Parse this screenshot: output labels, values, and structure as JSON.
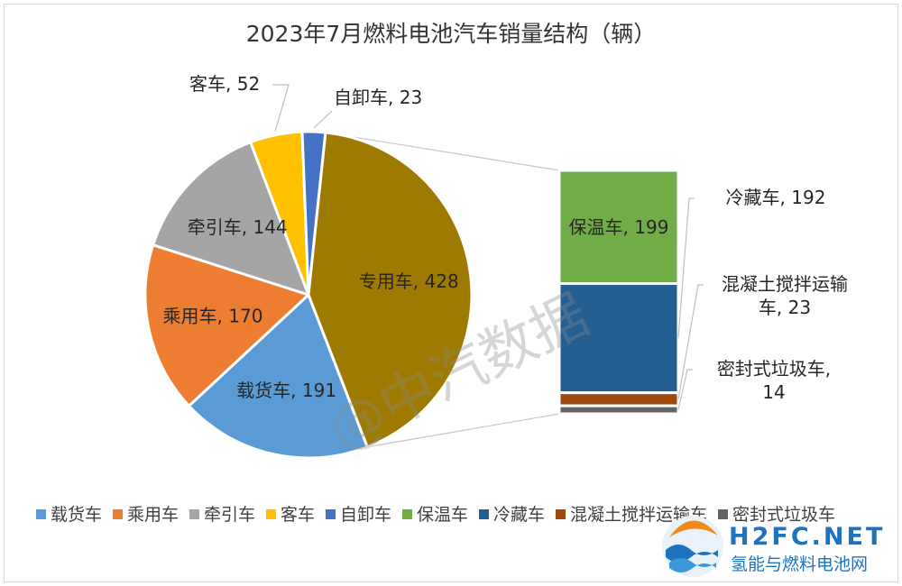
{
  "chart_data": {
    "type": "bar-of-pie",
    "title": "2023年7月燃料电池汽车销量结构（辆）",
    "pie": [
      {
        "name": "载货车",
        "value": 191,
        "label": "载货车, 191",
        "color": "#5b9bd5"
      },
      {
        "name": "乘用车",
        "value": 170,
        "label": "乘用车, 170",
        "color": "#ed7d31"
      },
      {
        "name": "牵引车",
        "value": 144,
        "label": "牵引车, 144",
        "color": "#a5a5a5"
      },
      {
        "name": "客车",
        "value": 52,
        "label": "客车, 52",
        "color": "#ffc000"
      },
      {
        "name": "自卸车",
        "value": 23,
        "label": "自卸车, 23",
        "color": "#4472c4"
      },
      {
        "name": "专用车",
        "value": 428,
        "label": "专用车, 428",
        "color": "#9e7b00"
      }
    ],
    "bar": [
      {
        "name": "保温车",
        "value": 199,
        "label": "保温车, 199",
        "color": "#70ad47"
      },
      {
        "name": "冷藏车",
        "value": 192,
        "label": "冷藏车, 192",
        "color": "#255e91"
      },
      {
        "name": "混凝土搅拌运输车",
        "value": 23,
        "label_lines": [
          "混凝土搅拌运输",
          "车, 23"
        ],
        "color": "#9e480e"
      },
      {
        "name": "密封式垃圾车",
        "value": 14,
        "label_lines": [
          "密封式垃圾车,",
          "14"
        ],
        "color": "#636363"
      }
    ],
    "legend": [
      "载货车",
      "乘用车",
      "牵引车",
      "客车",
      "自卸车",
      "保温车",
      "冷藏车",
      "混凝土搅拌运输车",
      "密封式垃圾车"
    ],
    "legend_position": "bottom"
  },
  "watermark": "@中汽数据",
  "logo": {
    "brand": "H2FC.NET",
    "subtitle": "氢能与燃料电池网"
  }
}
